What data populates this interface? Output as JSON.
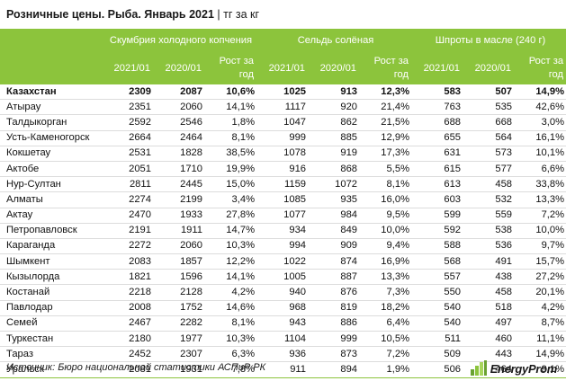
{
  "header": {
    "title": "Розничные цены. Рыба. Январь 2021",
    "separator": "|",
    "unit": "тг за кг"
  },
  "table": {
    "groups": [
      "Скумбрия холодного копчения",
      "Сельдь солёная",
      "Шпроты в масле (240 г)"
    ],
    "subheaders": [
      "2021/01",
      "2020/01",
      "Рост за год"
    ],
    "growth_line1": "Рост за",
    "growth_line2": "год",
    "rows": [
      {
        "region": "Казахстан",
        "values": [
          "2309",
          "2087",
          "10,6%",
          "1025",
          "913",
          "12,3%",
          "583",
          "507",
          "14,9%"
        ]
      },
      {
        "region": "Атырау",
        "values": [
          "2351",
          "2060",
          "14,1%",
          "1117",
          "920",
          "21,4%",
          "763",
          "535",
          "42,6%"
        ]
      },
      {
        "region": "Талдыкорган",
        "values": [
          "2592",
          "2546",
          "1,8%",
          "1047",
          "862",
          "21,5%",
          "688",
          "668",
          "3,0%"
        ]
      },
      {
        "region": "Усть-Каменогорск",
        "values": [
          "2664",
          "2464",
          "8,1%",
          "999",
          "885",
          "12,9%",
          "655",
          "564",
          "16,1%"
        ]
      },
      {
        "region": "Кокшетау",
        "values": [
          "2531",
          "1828",
          "38,5%",
          "1078",
          "919",
          "17,3%",
          "631",
          "573",
          "10,1%"
        ]
      },
      {
        "region": "Актобе",
        "values": [
          "2051",
          "1710",
          "19,9%",
          "916",
          "868",
          "5,5%",
          "615",
          "577",
          "6,6%"
        ]
      },
      {
        "region": "Нур-Султан",
        "values": [
          "2811",
          "2445",
          "15,0%",
          "1159",
          "1072",
          "8,1%",
          "613",
          "458",
          "33,8%"
        ]
      },
      {
        "region": "Алматы",
        "values": [
          "2274",
          "2199",
          "3,4%",
          "1085",
          "935",
          "16,0%",
          "603",
          "532",
          "13,3%"
        ]
      },
      {
        "region": "Актау",
        "values": [
          "2470",
          "1933",
          "27,8%",
          "1077",
          "984",
          "9,5%",
          "599",
          "559",
          "7,2%"
        ]
      },
      {
        "region": "Петропавловск",
        "values": [
          "2191",
          "1911",
          "14,7%",
          "934",
          "849",
          "10,0%",
          "592",
          "538",
          "10,0%"
        ]
      },
      {
        "region": "Караганда",
        "values": [
          "2272",
          "2060",
          "10,3%",
          "994",
          "909",
          "9,4%",
          "588",
          "536",
          "9,7%"
        ]
      },
      {
        "region": "Шымкент",
        "values": [
          "2083",
          "1857",
          "12,2%",
          "1022",
          "874",
          "16,9%",
          "568",
          "491",
          "15,7%"
        ]
      },
      {
        "region": "Кызылорда",
        "values": [
          "1821",
          "1596",
          "14,1%",
          "1005",
          "887",
          "13,3%",
          "557",
          "438",
          "27,2%"
        ]
      },
      {
        "region": "Костанай",
        "values": [
          "2218",
          "2128",
          "4,2%",
          "940",
          "876",
          "7,3%",
          "550",
          "458",
          "20,1%"
        ]
      },
      {
        "region": "Павлодар",
        "values": [
          "2008",
          "1752",
          "14,6%",
          "968",
          "819",
          "18,2%",
          "540",
          "518",
          "4,2%"
        ]
      },
      {
        "region": "Семей",
        "values": [
          "2467",
          "2282",
          "8,1%",
          "943",
          "886",
          "6,4%",
          "540",
          "497",
          "8,7%"
        ]
      },
      {
        "region": "Туркестан",
        "values": [
          "2180",
          "1977",
          "10,3%",
          "1104",
          "999",
          "10,5%",
          "511",
          "460",
          "11,1%"
        ]
      },
      {
        "region": "Тараз",
        "values": [
          "2452",
          "2307",
          "6,3%",
          "936",
          "873",
          "7,2%",
          "509",
          "443",
          "14,9%"
        ]
      },
      {
        "region": "Уральск",
        "values": [
          "2081",
          "1931",
          "7,8%",
          "911",
          "894",
          "1,9%",
          "506",
          "464",
          "9,1%"
        ]
      }
    ]
  },
  "footer": {
    "source": "Источник: Бюро национальной статистики АСПиР РК",
    "logo_text": "EnergyProm",
    "logo_icon": "energyprom-logo-icon",
    "accent_color": "#8cc43c"
  }
}
